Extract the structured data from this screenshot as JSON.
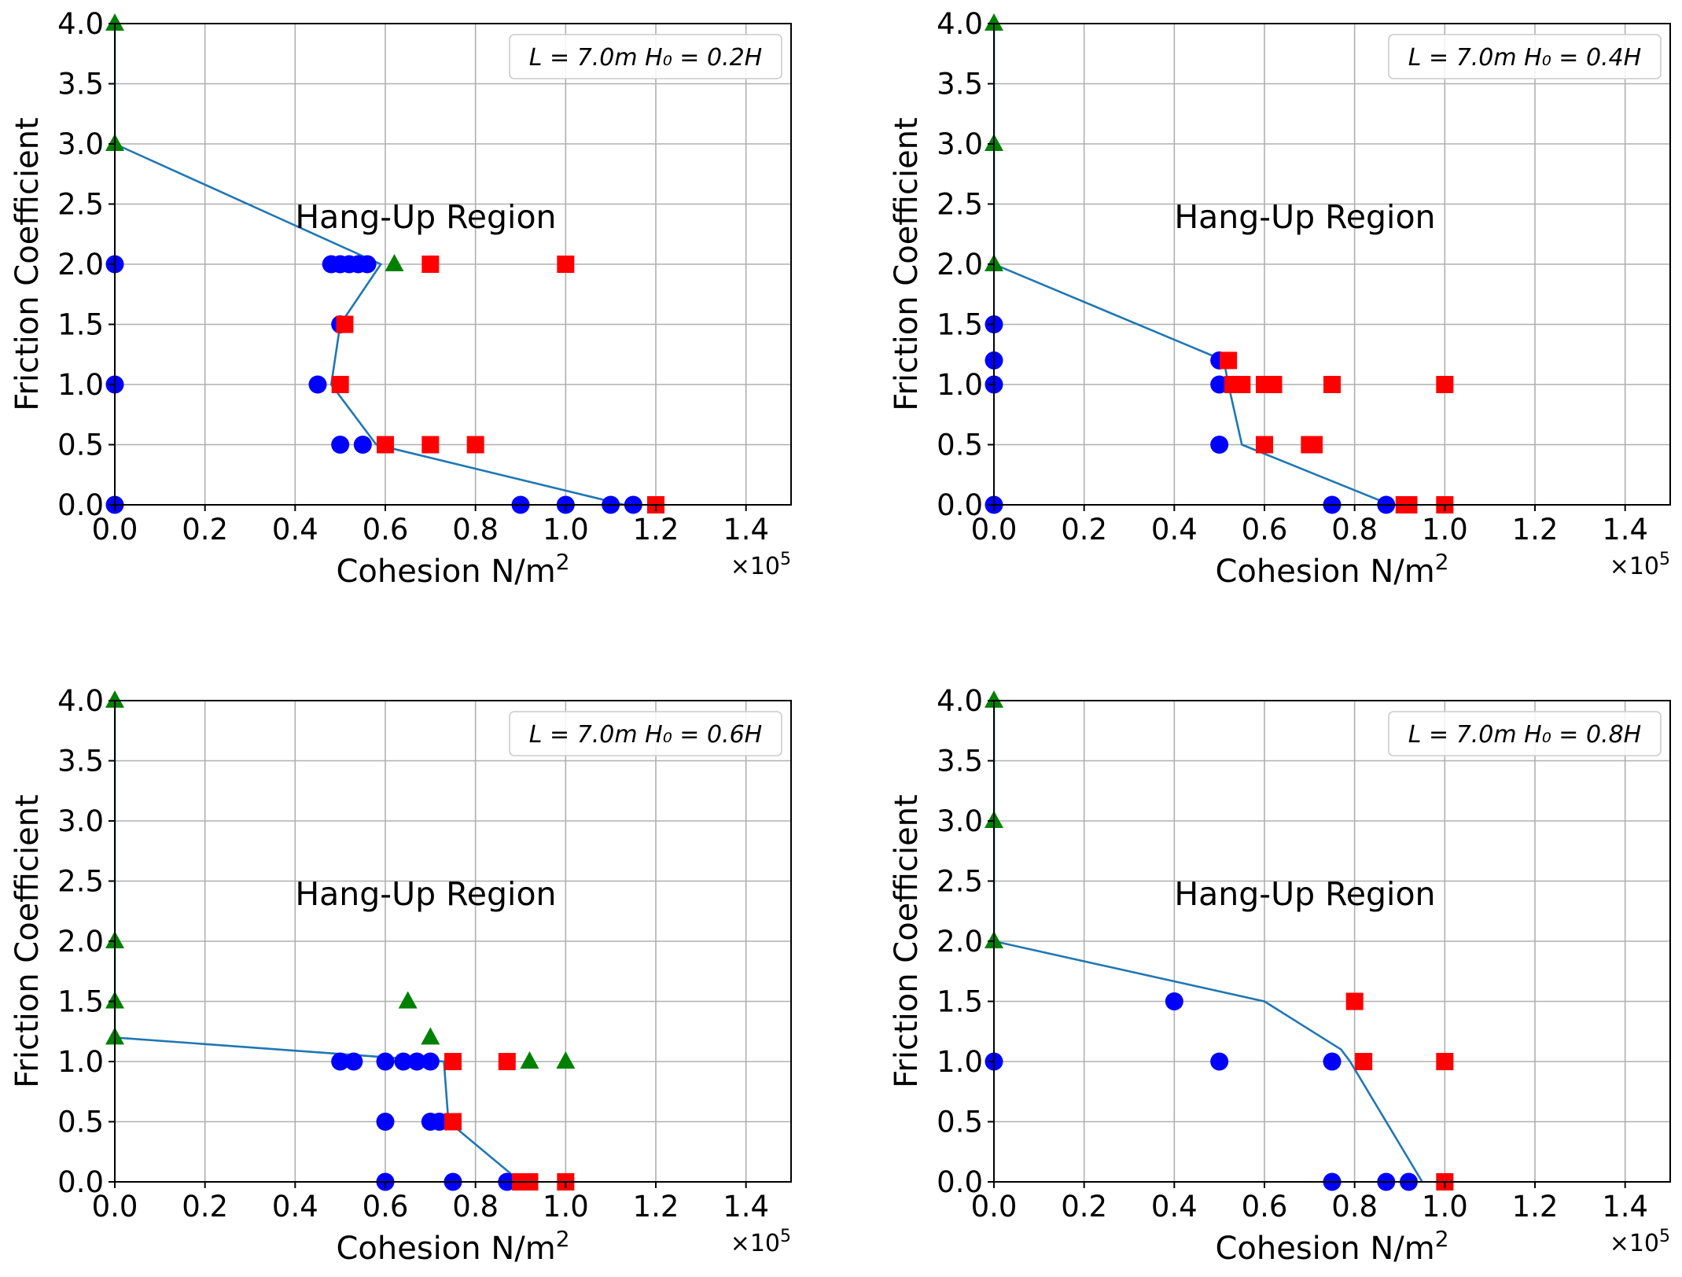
{
  "figure": {
    "xlabel": "Cohesion N/m",
    "xlabel_sup": "2",
    "ylabel": "Friction Coefficient",
    "x_multiplier_base": "×10",
    "x_multiplier_exp": "5",
    "annotation": "Hang-Up Region"
  },
  "colors": {
    "line": "#1f77b4",
    "circle": "#0000ff",
    "square": "#ff0000",
    "triangle": "#008000",
    "grid": "#b0b0b0"
  },
  "chart_data": [
    {
      "type": "scatter",
      "legend": "L = 7.0m H₀ = 0.2H",
      "legend_position": "upper right",
      "xlabel": "Cohesion N/m²",
      "ylabel": "Friction Coefficient",
      "xlim": [
        0,
        1.5
      ],
      "ylim": [
        0,
        4.0
      ],
      "x_scale_note": "×10⁵",
      "xticks": [
        "0.0",
        "0.2",
        "0.4",
        "0.6",
        "0.8",
        "1.0",
        "1.2",
        "1.4"
      ],
      "yticks": [
        "0.0",
        "0.5",
        "1.0",
        "1.5",
        "2.0",
        "2.5",
        "3.0",
        "3.5",
        "4.0"
      ],
      "grid": true,
      "annotation": {
        "text": "Hang-Up Region",
        "x": 0.4,
        "y": 2.3
      },
      "boundary_line": {
        "x": [
          0.0,
          0.0,
          0.59,
          0.5,
          0.48,
          0.58,
          1.13
        ],
        "y": [
          4.0,
          3.0,
          2.0,
          1.5,
          1.0,
          0.5,
          0.0
        ]
      },
      "series": [
        {
          "marker": "circle",
          "x": [
            0.0,
            0.0,
            0.0,
            0.48,
            0.5,
            0.52,
            0.54,
            0.56,
            0.5,
            0.45,
            0.5,
            0.55,
            0.9,
            1.0,
            1.1,
            1.15
          ],
          "y": [
            2.0,
            1.0,
            0.0,
            2.0,
            2.0,
            2.0,
            2.0,
            2.0,
            1.5,
            1.0,
            0.5,
            0.5,
            0.0,
            0.0,
            0.0,
            0.0
          ]
        },
        {
          "marker": "square",
          "x": [
            0.7,
            1.0,
            0.51,
            0.5,
            0.6,
            0.7,
            0.8,
            1.2
          ],
          "y": [
            2.0,
            2.0,
            1.5,
            1.0,
            0.5,
            0.5,
            0.5,
            0.0
          ]
        },
        {
          "marker": "triangle",
          "x": [
            0.0,
            0.0,
            0.62
          ],
          "y": [
            4.0,
            3.0,
            2.0
          ]
        }
      ]
    },
    {
      "type": "scatter",
      "legend": "L = 7.0m H₀ = 0.4H",
      "legend_position": "upper right",
      "xlabel": "Cohesion N/m²",
      "ylabel": "Friction Coefficient",
      "xlim": [
        0,
        1.5
      ],
      "ylim": [
        0,
        4.0
      ],
      "x_scale_note": "×10⁵",
      "xticks": [
        "0.0",
        "0.2",
        "0.4",
        "0.6",
        "0.8",
        "1.0",
        "1.2",
        "1.4"
      ],
      "yticks": [
        "0.0",
        "0.5",
        "1.0",
        "1.5",
        "2.0",
        "2.5",
        "3.0",
        "3.5",
        "4.0"
      ],
      "grid": true,
      "annotation": {
        "text": "Hang-Up Region",
        "x": 0.4,
        "y": 2.3
      },
      "boundary_line": {
        "x": [
          0.0,
          0.0,
          0.0,
          0.51,
          0.52,
          0.55,
          0.88
        ],
        "y": [
          4.0,
          3.0,
          2.0,
          1.2,
          1.0,
          0.5,
          0.0
        ]
      },
      "series": [
        {
          "marker": "circle",
          "x": [
            0.0,
            0.0,
            0.0,
            0.0,
            0.5,
            0.5,
            0.5,
            0.75,
            0.87
          ],
          "y": [
            1.5,
            1.2,
            1.0,
            0.0,
            1.2,
            1.0,
            0.5,
            0.0,
            0.0
          ]
        },
        {
          "marker": "square",
          "x": [
            0.52,
            0.53,
            0.55,
            0.6,
            0.62,
            0.75,
            1.0,
            0.6,
            0.7,
            0.71,
            0.91,
            0.92,
            1.0
          ],
          "y": [
            1.2,
            1.0,
            1.0,
            1.0,
            1.0,
            1.0,
            1.0,
            0.5,
            0.5,
            0.5,
            0.0,
            0.0,
            0.0
          ]
        },
        {
          "marker": "triangle",
          "x": [
            0.0,
            0.0,
            0.0
          ],
          "y": [
            4.0,
            3.0,
            2.0
          ]
        }
      ]
    },
    {
      "type": "scatter",
      "legend": "L = 7.0m H₀ = 0.6H",
      "legend_position": "upper right",
      "xlabel": "Cohesion N/m²",
      "ylabel": "Friction Coefficient",
      "xlim": [
        0,
        1.5
      ],
      "ylim": [
        0,
        4.0
      ],
      "x_scale_note": "×10⁵",
      "xticks": [
        "0.0",
        "0.2",
        "0.4",
        "0.6",
        "0.8",
        "1.0",
        "1.2",
        "1.4"
      ],
      "yticks": [
        "0.0",
        "0.5",
        "1.0",
        "1.5",
        "2.0",
        "2.5",
        "3.0",
        "3.5",
        "4.0"
      ],
      "grid": true,
      "annotation": {
        "text": "Hang-Up Region",
        "x": 0.4,
        "y": 2.3
      },
      "boundary_line": {
        "x": [
          0.0,
          0.0,
          0.0,
          0.0,
          0.73,
          0.74,
          0.9
        ],
        "y": [
          4.0,
          2.0,
          1.5,
          1.2,
          1.0,
          0.5,
          0.0
        ]
      },
      "series": [
        {
          "marker": "circle",
          "x": [
            0.5,
            0.53,
            0.6,
            0.64,
            0.67,
            0.7,
            0.6,
            0.7,
            0.72,
            0.6,
            0.75,
            0.87
          ],
          "y": [
            1.0,
            1.0,
            1.0,
            1.0,
            1.0,
            1.0,
            0.5,
            0.5,
            0.5,
            0.0,
            0.0,
            0.0
          ]
        },
        {
          "marker": "square",
          "x": [
            0.75,
            0.87,
            0.75,
            0.9,
            0.92,
            1.0
          ],
          "y": [
            1.0,
            1.0,
            0.5,
            0.0,
            0.0,
            0.0
          ]
        },
        {
          "marker": "triangle",
          "x": [
            0.0,
            0.0,
            0.0,
            0.0,
            0.65,
            0.7,
            0.92,
            1.0
          ],
          "y": [
            4.0,
            2.0,
            1.5,
            1.2,
            1.5,
            1.2,
            1.0,
            1.0
          ]
        }
      ]
    },
    {
      "type": "scatter",
      "legend": "L = 7.0m H₀ = 0.8H",
      "legend_position": "upper right",
      "xlabel": "Cohesion N/m²",
      "ylabel": "Friction Coefficient",
      "xlim": [
        0,
        1.5
      ],
      "ylim": [
        0,
        4.0
      ],
      "x_scale_note": "×10⁵",
      "xticks": [
        "0.0",
        "0.2",
        "0.4",
        "0.6",
        "0.8",
        "1.0",
        "1.2",
        "1.4"
      ],
      "yticks": [
        "0.0",
        "0.5",
        "1.0",
        "1.5",
        "2.0",
        "2.5",
        "3.0",
        "3.5",
        "4.0"
      ],
      "grid": true,
      "annotation": {
        "text": "Hang-Up Region",
        "x": 0.4,
        "y": 2.3
      },
      "boundary_line": {
        "x": [
          0.0,
          0.0,
          0.6,
          0.77,
          0.79,
          0.95
        ],
        "y": [
          4.0,
          2.0,
          1.5,
          1.1,
          1.0,
          0.0
        ]
      },
      "series": [
        {
          "marker": "circle",
          "x": [
            0.4,
            0.0,
            0.5,
            0.75,
            0.75,
            0.87,
            0.92
          ],
          "y": [
            1.5,
            1.0,
            1.0,
            1.0,
            0.0,
            0.0,
            0.0
          ]
        },
        {
          "marker": "square",
          "x": [
            0.8,
            0.82,
            1.0,
            1.0
          ],
          "y": [
            1.5,
            1.0,
            1.0,
            0.0
          ]
        },
        {
          "marker": "triangle",
          "x": [
            0.0,
            0.0,
            0.0
          ],
          "y": [
            4.0,
            3.0,
            2.0
          ]
        }
      ]
    }
  ]
}
